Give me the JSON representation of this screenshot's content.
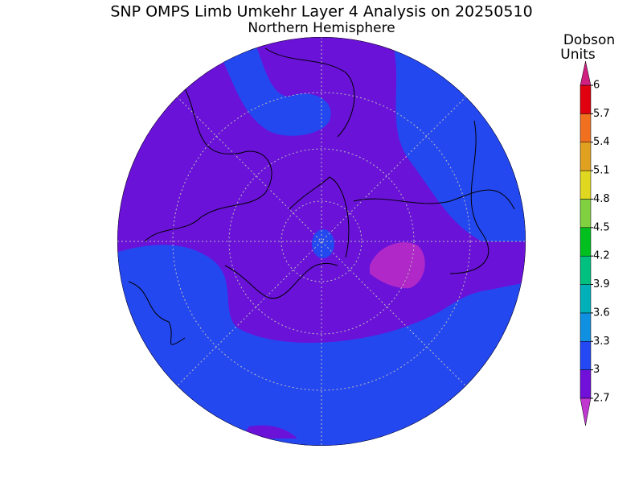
{
  "title": "SNP OMPS Limb Umkehr Layer 4 Analysis on 20250510",
  "subtitle": "Northern Hemisphere",
  "colorbar": {
    "label_lines": [
      "Dobson",
      "Units"
    ],
    "lim": [
      2.7,
      6
    ],
    "ticks": [
      2.7,
      3,
      3.3,
      3.6,
      3.9,
      4.2,
      4.5,
      4.8,
      5.1,
      5.4,
      5.7,
      6
    ],
    "colors": [
      "#7010d8",
      "#2448f4",
      "#1090e0",
      "#00b0b8",
      "#00c080",
      "#00c020",
      "#80d040",
      "#e0d820",
      "#e0a020",
      "#f07020",
      "#e00010"
    ],
    "under_color": "#c038d0",
    "over_color": "#d02080"
  }
}
